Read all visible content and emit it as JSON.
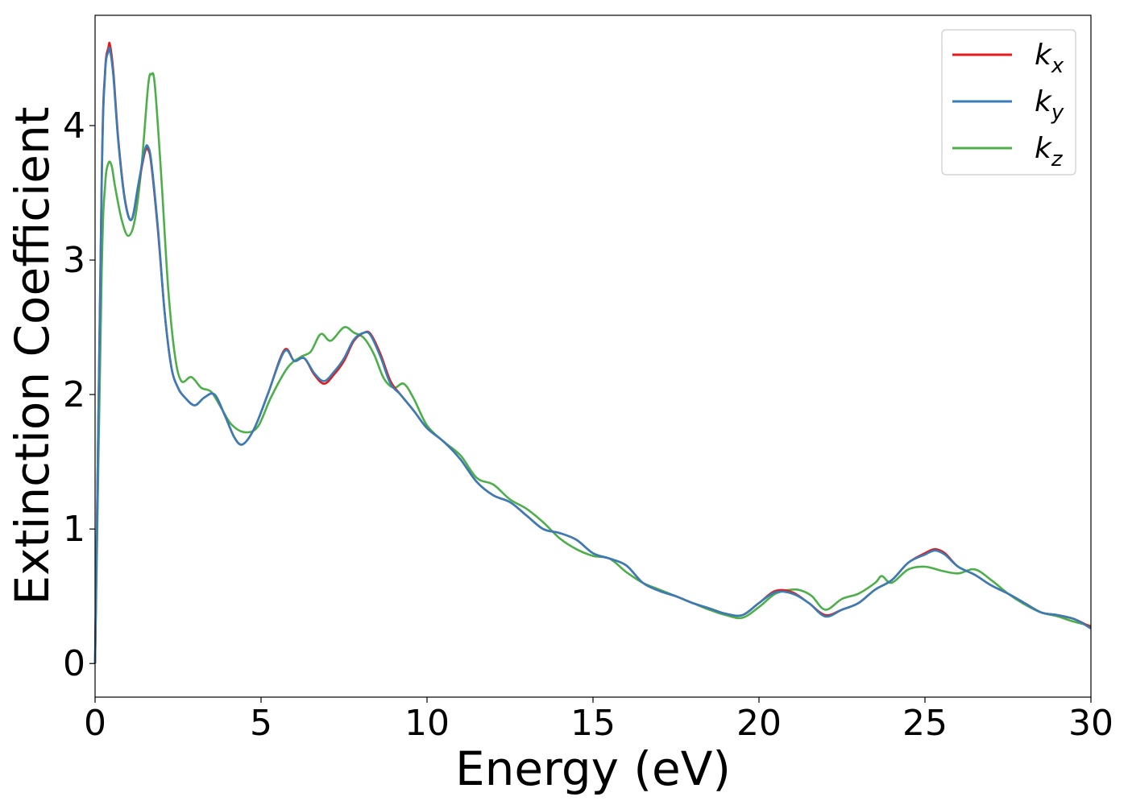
{
  "chart_data": {
    "type": "line",
    "title": "",
    "xlabel": "Energy (eV)",
    "ylabel": "Extinction Coefficient",
    "xlim": [
      0,
      30
    ],
    "ylim": [
      -0.25,
      4.82
    ],
    "xticks": [
      0,
      5,
      10,
      15,
      20,
      25,
      30
    ],
    "yticks": [
      0,
      1,
      2,
      3,
      4
    ],
    "grid": false,
    "legend_position": "top-right",
    "series": [
      {
        "name": "k_x",
        "label_base": "k",
        "label_sub": "x",
        "color": "#e41a1c",
        "x": [
          0,
          0.2,
          0.3,
          0.4,
          0.45,
          0.55,
          0.7,
          0.9,
          1.1,
          1.3,
          1.5,
          1.6,
          1.7,
          1.9,
          2.1,
          2.3,
          2.5,
          2.7,
          3.0,
          3.3,
          3.6,
          3.9,
          4.2,
          4.45,
          4.8,
          5.2,
          5.7,
          6.0,
          6.3,
          6.6,
          6.9,
          7.2,
          7.5,
          7.8,
          8.1,
          8.3,
          8.6,
          8.9,
          9.2,
          9.6,
          10.0,
          10.5,
          11.0,
          11.5,
          12.0,
          12.5,
          13.0,
          13.5,
          14.0,
          14.5,
          15.0,
          15.5,
          16.0,
          16.5,
          17.0,
          17.5,
          18.0,
          18.5,
          19.0,
          19.5,
          20.0,
          20.5,
          21.0,
          21.5,
          22.0,
          22.5,
          23.0,
          23.5,
          24.0,
          24.5,
          25.0,
          25.3,
          25.6,
          26.0,
          26.5,
          27.0,
          27.5,
          28.0,
          28.5,
          29.0,
          29.5,
          30.0
        ],
        "y": [
          0.0,
          3.6,
          4.4,
          4.58,
          4.6,
          4.4,
          3.9,
          3.45,
          3.3,
          3.55,
          3.8,
          3.82,
          3.7,
          3.2,
          2.6,
          2.2,
          2.05,
          1.98,
          1.92,
          1.98,
          2.0,
          1.85,
          1.68,
          1.63,
          1.75,
          2.0,
          2.33,
          2.25,
          2.27,
          2.15,
          2.08,
          2.15,
          2.25,
          2.4,
          2.46,
          2.45,
          2.3,
          2.1,
          2.0,
          1.88,
          1.75,
          1.65,
          1.52,
          1.35,
          1.25,
          1.2,
          1.1,
          1.0,
          0.97,
          0.92,
          0.82,
          0.78,
          0.73,
          0.6,
          0.54,
          0.5,
          0.45,
          0.41,
          0.37,
          0.36,
          0.45,
          0.54,
          0.53,
          0.45,
          0.36,
          0.4,
          0.45,
          0.55,
          0.62,
          0.75,
          0.82,
          0.85,
          0.82,
          0.72,
          0.66,
          0.58,
          0.52,
          0.45,
          0.38,
          0.36,
          0.33,
          0.27
        ]
      },
      {
        "name": "k_y",
        "label_base": "k",
        "label_sub": "y",
        "color": "#377eb8",
        "x": [
          0,
          0.2,
          0.3,
          0.4,
          0.45,
          0.55,
          0.7,
          0.9,
          1.1,
          1.3,
          1.5,
          1.6,
          1.7,
          1.9,
          2.1,
          2.3,
          2.5,
          2.7,
          3.0,
          3.3,
          3.6,
          3.9,
          4.2,
          4.45,
          4.8,
          5.2,
          5.7,
          6.0,
          6.3,
          6.6,
          6.9,
          7.2,
          7.5,
          7.8,
          8.1,
          8.3,
          8.6,
          8.9,
          9.2,
          9.6,
          10.0,
          10.5,
          11.0,
          11.5,
          12.0,
          12.5,
          13.0,
          13.5,
          14.0,
          14.5,
          15.0,
          15.5,
          16.0,
          16.5,
          17.0,
          17.5,
          18.0,
          18.5,
          19.0,
          19.5,
          20.0,
          20.5,
          21.0,
          21.5,
          22.0,
          22.5,
          23.0,
          23.5,
          24.0,
          24.5,
          25.0,
          25.3,
          25.6,
          26.0,
          26.5,
          27.0,
          27.5,
          28.0,
          28.5,
          29.0,
          29.5,
          30.0
        ],
        "y": [
          0.0,
          3.55,
          4.38,
          4.55,
          4.56,
          4.37,
          3.88,
          3.44,
          3.3,
          3.56,
          3.82,
          3.84,
          3.72,
          3.22,
          2.6,
          2.2,
          2.05,
          1.98,
          1.92,
          1.98,
          2.0,
          1.85,
          1.68,
          1.63,
          1.75,
          2.0,
          2.32,
          2.25,
          2.27,
          2.16,
          2.1,
          2.17,
          2.27,
          2.41,
          2.46,
          2.44,
          2.28,
          2.08,
          2.0,
          1.88,
          1.75,
          1.65,
          1.52,
          1.35,
          1.25,
          1.2,
          1.1,
          1.0,
          0.97,
          0.92,
          0.82,
          0.78,
          0.73,
          0.6,
          0.54,
          0.5,
          0.45,
          0.41,
          0.37,
          0.36,
          0.45,
          0.53,
          0.52,
          0.45,
          0.35,
          0.4,
          0.45,
          0.55,
          0.62,
          0.75,
          0.81,
          0.84,
          0.81,
          0.72,
          0.66,
          0.58,
          0.52,
          0.45,
          0.38,
          0.36,
          0.33,
          0.26
        ]
      },
      {
        "name": "k_z",
        "label_base": "k",
        "label_sub": "z",
        "color": "#4daf4a",
        "x": [
          0,
          0.2,
          0.3,
          0.4,
          0.5,
          0.6,
          0.8,
          1.0,
          1.2,
          1.4,
          1.6,
          1.7,
          1.8,
          2.0,
          2.2,
          2.4,
          2.6,
          2.9,
          3.2,
          3.5,
          3.8,
          4.1,
          4.5,
          4.9,
          5.3,
          5.8,
          6.2,
          6.5,
          6.8,
          7.1,
          7.5,
          7.8,
          8.1,
          8.4,
          8.7,
          9.0,
          9.3,
          9.6,
          10.0,
          10.5,
          11.0,
          11.5,
          12.0,
          12.5,
          13.0,
          13.5,
          14.0,
          14.5,
          15.0,
          15.5,
          16.0,
          16.5,
          17.0,
          17.5,
          18.0,
          18.5,
          19.0,
          19.5,
          20.0,
          20.5,
          21.0,
          21.3,
          21.6,
          22.0,
          22.5,
          23.0,
          23.5,
          23.7,
          24.0,
          24.5,
          25.0,
          25.5,
          26.0,
          26.5,
          27.0,
          27.5,
          28.0,
          28.5,
          29.0,
          29.5,
          30.0
        ],
        "y": [
          0.0,
          2.9,
          3.55,
          3.72,
          3.7,
          3.55,
          3.3,
          3.18,
          3.3,
          3.7,
          4.3,
          4.38,
          4.3,
          3.6,
          2.8,
          2.3,
          2.1,
          2.13,
          2.05,
          2.02,
          1.9,
          1.78,
          1.72,
          1.76,
          1.98,
          2.2,
          2.28,
          2.32,
          2.45,
          2.4,
          2.5,
          2.46,
          2.42,
          2.3,
          2.12,
          2.05,
          2.08,
          1.97,
          1.77,
          1.65,
          1.55,
          1.38,
          1.33,
          1.22,
          1.15,
          1.05,
          0.93,
          0.85,
          0.8,
          0.78,
          0.68,
          0.6,
          0.55,
          0.5,
          0.45,
          0.4,
          0.36,
          0.34,
          0.42,
          0.52,
          0.55,
          0.54,
          0.5,
          0.4,
          0.48,
          0.52,
          0.6,
          0.65,
          0.6,
          0.7,
          0.72,
          0.69,
          0.67,
          0.7,
          0.62,
          0.52,
          0.44,
          0.38,
          0.35,
          0.31,
          0.28
        ]
      }
    ]
  }
}
